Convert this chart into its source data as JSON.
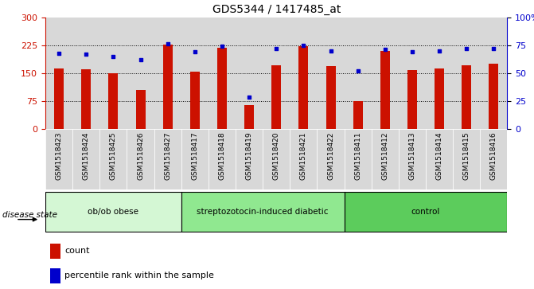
{
  "title": "GDS5344 / 1417485_at",
  "samples": [
    "GSM1518423",
    "GSM1518424",
    "GSM1518425",
    "GSM1518426",
    "GSM1518427",
    "GSM1518417",
    "GSM1518418",
    "GSM1518419",
    "GSM1518420",
    "GSM1518421",
    "GSM1518422",
    "GSM1518411",
    "GSM1518412",
    "GSM1518413",
    "GSM1518414",
    "GSM1518415",
    "GSM1518416"
  ],
  "counts": [
    163,
    160,
    150,
    105,
    227,
    153,
    218,
    63,
    170,
    222,
    168,
    75,
    210,
    157,
    163,
    170,
    175
  ],
  "percentile_ranks": [
    68,
    67,
    65,
    62,
    76,
    69,
    74,
    28,
    72,
    75,
    70,
    52,
    71,
    69,
    70,
    72,
    72
  ],
  "groups": [
    {
      "label": "ob/ob obese",
      "start": 0,
      "end": 5,
      "color": "#d4f7d4"
    },
    {
      "label": "streptozotocin-induced diabetic",
      "start": 5,
      "end": 11,
      "color": "#90e890"
    },
    {
      "label": "control",
      "start": 11,
      "end": 17,
      "color": "#5ccc5c"
    }
  ],
  "ylim_left": [
    0,
    300
  ],
  "ylim_right": [
    0,
    100
  ],
  "left_ticks": [
    0,
    75,
    150,
    225,
    300
  ],
  "right_ticks": [
    0,
    25,
    50,
    75,
    100
  ],
  "right_tick_labels": [
    "0",
    "25",
    "50",
    "75",
    "100%"
  ],
  "bar_color": "#cc1100",
  "percentile_color": "#0000cc",
  "cell_bg_color": "#d8d8d8",
  "plot_bg": "#ffffff",
  "left_axis_color": "#cc1100",
  "right_axis_color": "#0000cc",
  "bar_width": 0.35
}
